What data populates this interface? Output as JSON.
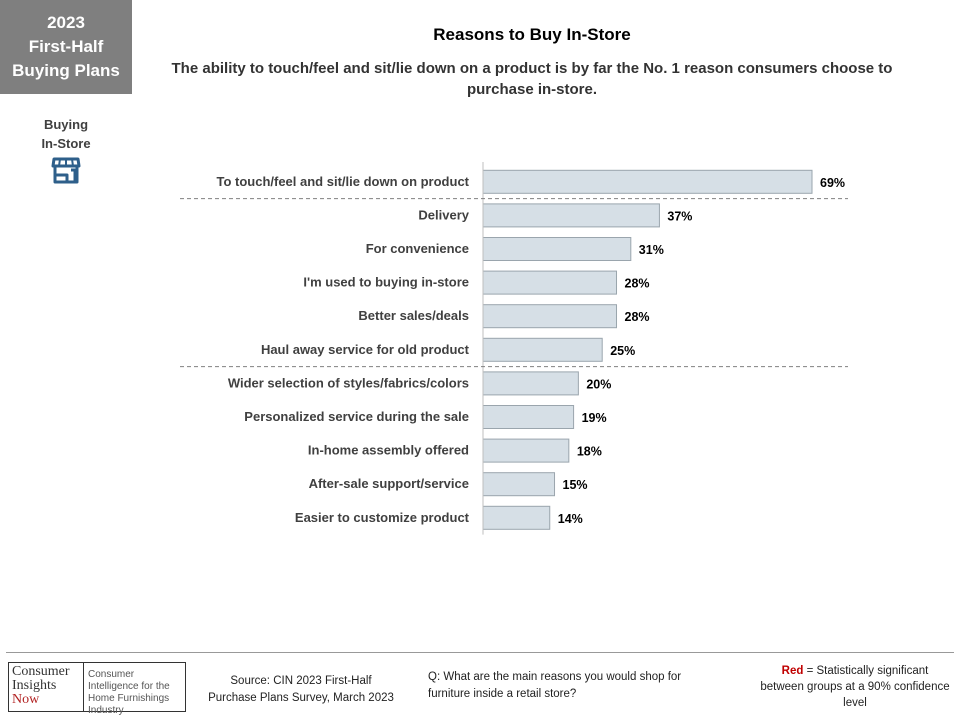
{
  "badge": {
    "line1": "2023",
    "line2": "First-Half",
    "line3": "Buying Plans"
  },
  "side": {
    "line1": "Buying",
    "line2": "In-Store",
    "icon": "storefront-icon"
  },
  "chart_data": {
    "type": "bar",
    "orientation": "horizontal",
    "title": "Reasons to Buy In-Store",
    "subtitle": "The ability to touch/feel and sit/lie down on a product is by far the No. 1 reason consumers choose to purchase in-store.",
    "categories": [
      "To touch/feel and sit/lie down on product",
      "Delivery",
      "For convenience",
      "I'm used to buying in-store",
      "Better sales/deals",
      "Haul away service for old product",
      "Wider selection of styles/fabrics/colors",
      "Personalized service during the sale",
      "In-home assembly offered",
      "After-sale support/service",
      "Easier to customize product"
    ],
    "values": [
      69,
      37,
      31,
      28,
      28,
      25,
      20,
      19,
      18,
      15,
      14
    ],
    "value_labels": [
      "69%",
      "37%",
      "31%",
      "28%",
      "28%",
      "25%",
      "20%",
      "19%",
      "18%",
      "15%",
      "14%"
    ],
    "xlim": [
      0,
      100
    ],
    "bar_color": "#d6dfe6",
    "bar_border": "#9aa5ad",
    "dashed_separators_after_index": [
      0,
      5
    ],
    "grid": false,
    "legend": "none"
  },
  "footer": {
    "logo_left": [
      "Consumer",
      "Insights",
      "Now"
    ],
    "logo_right": "Consumer Intelligence for the Home Furnishings Industry",
    "source_line1": "Source:  CIN 2023 First-Half",
    "source_line2": "Purchase Plans Survey, March 2023",
    "question": "Q: What are the main reasons you would shop for furniture inside a retail store?",
    "note_red": "Red",
    "note_rest": " = Statistically significant between  groups at a 90% confidence level"
  },
  "colors": {
    "badge_bg": "#7f7f7f",
    "icon": "#2e5f8a",
    "significance_red": "#c00000"
  }
}
